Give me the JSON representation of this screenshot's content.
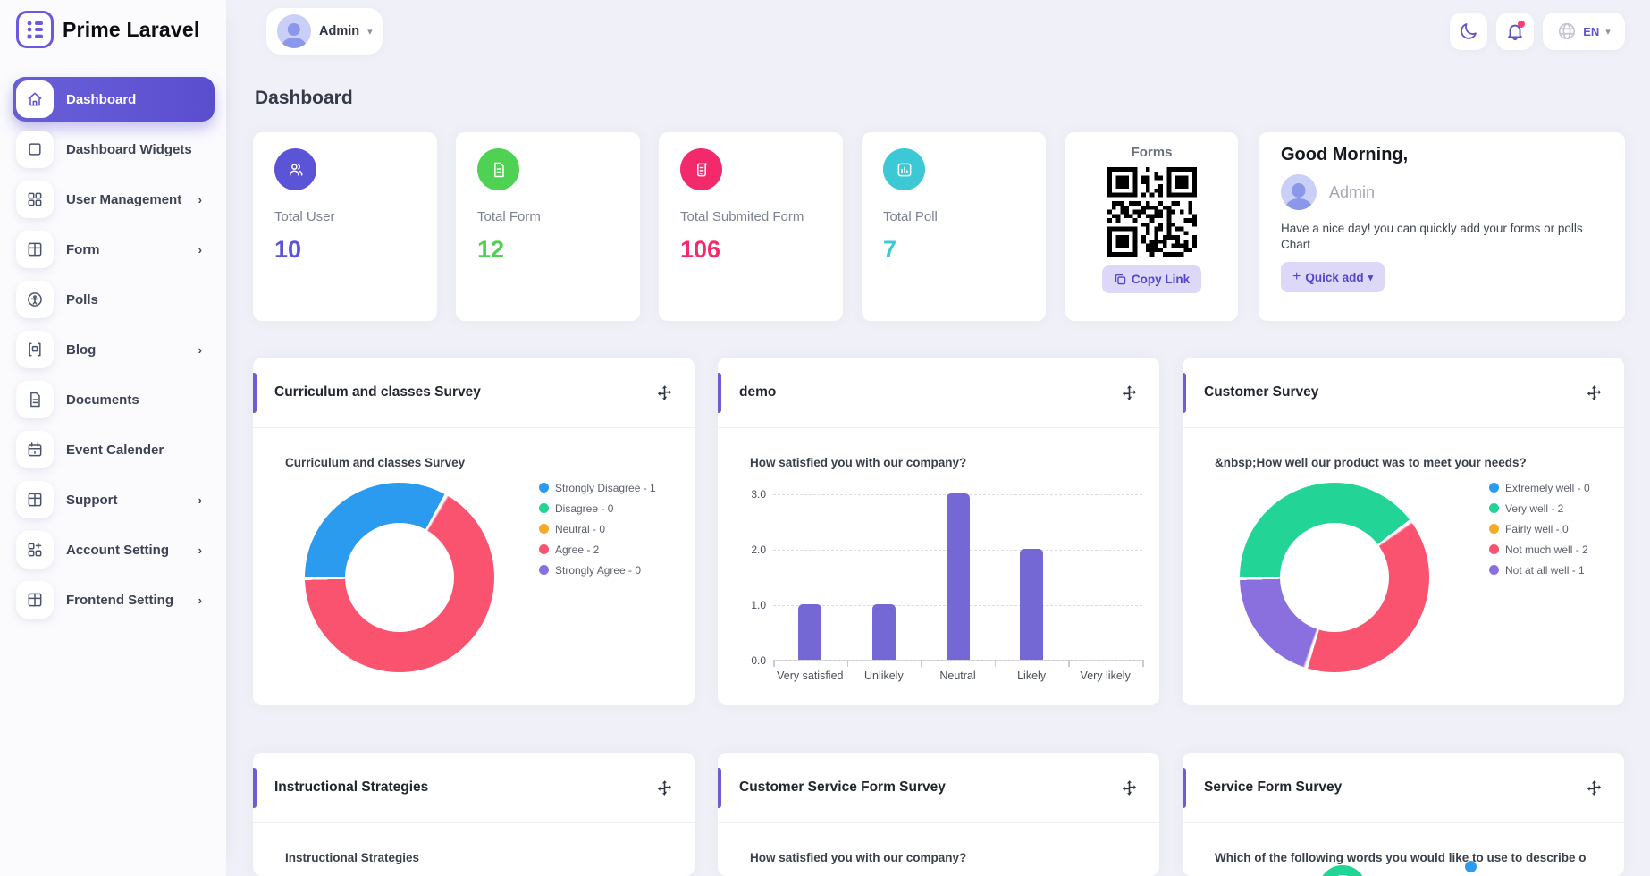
{
  "brand": {
    "name": "Prime Laravel"
  },
  "topbar": {
    "user": "Admin",
    "lang": "EN",
    "icons": [
      "moon-icon",
      "bell-icon",
      "globe-icon"
    ]
  },
  "sidebar": {
    "items": [
      {
        "label": "Dashboard",
        "icon": "home-icon",
        "active": true,
        "chevron": false
      },
      {
        "label": "Dashboard Widgets",
        "icon": "widget-icon",
        "active": false,
        "chevron": false
      },
      {
        "label": "User Management",
        "icon": "grid-icon",
        "active": false,
        "chevron": true
      },
      {
        "label": "Form",
        "icon": "table-icon",
        "active": false,
        "chevron": true
      },
      {
        "label": "Polls",
        "icon": "polls-icon",
        "active": false,
        "chevron": false
      },
      {
        "label": "Blog",
        "icon": "blog-icon",
        "active": false,
        "chevron": true
      },
      {
        "label": "Documents",
        "icon": "document-icon",
        "active": false,
        "chevron": false
      },
      {
        "label": "Event Calender",
        "icon": "calendar-icon",
        "active": false,
        "chevron": false
      },
      {
        "label": "Support",
        "icon": "table-icon",
        "active": false,
        "chevron": true
      },
      {
        "label": "Account Setting",
        "icon": "grid-plus-icon",
        "active": false,
        "chevron": true
      },
      {
        "label": "Frontend Setting",
        "icon": "table-icon",
        "active": false,
        "chevron": true
      }
    ]
  },
  "page": {
    "title": "Dashboard"
  },
  "stats": [
    {
      "label": "Total User",
      "value": "10",
      "color": "#5b54d6",
      "icon": "users-icon"
    },
    {
      "label": "Total Form",
      "value": "12",
      "color": "#4fd153",
      "icon": "form-icon"
    },
    {
      "label": "Total Submited Form",
      "value": "106",
      "color": "#f2296b",
      "icon": "submitted-form-icon"
    },
    {
      "label": "Total Poll",
      "value": "7",
      "color": "#3cc9d5",
      "icon": "poll-icon"
    }
  ],
  "forms_card": {
    "title": "Forms",
    "button": "Copy Link"
  },
  "greeting": {
    "title": "Good Morning,",
    "user": "Admin",
    "message": "Have a nice day! you can quickly add your forms or polls Chart",
    "button": "Quick add"
  },
  "widgets": [
    {
      "title": "Curriculum and classes Survey"
    },
    {
      "title": "demo"
    },
    {
      "title": "Customer Survey"
    },
    {
      "title": "Instructional Strategies",
      "inner_title": "Instructional Strategies"
    },
    {
      "title": "Customer Service Form Survey",
      "inner_title": "How satisfied you with our company?"
    },
    {
      "title": "Service Form Survey",
      "inner_title": "Which of the following words you would like to use to describe o"
    }
  ],
  "chart_data": [
    {
      "type": "pie",
      "widget": 0,
      "title": "Curriculum and classes Survey",
      "legend_position": "right",
      "categories": [
        "Strongly Disagree",
        "Disagree",
        "Neutral",
        "Agree",
        "Strongly Agree"
      ],
      "values": [
        1,
        0,
        0,
        2,
        0
      ],
      "colors": [
        "#2b9bf0",
        "#22d597",
        "#f7a928",
        "#f9536f",
        "#8a70de"
      ],
      "donut": true,
      "start_angle_deg": 270
    },
    {
      "type": "bar",
      "widget": 1,
      "title": "How satisfied you with our company?",
      "categories": [
        "Very satisfied",
        "Unlikely",
        "Neutral",
        "Likely",
        "Very likely"
      ],
      "values": [
        1,
        1,
        3,
        2,
        0
      ],
      "bar_color": "#7468d4",
      "ylim": [
        0,
        3
      ],
      "ytick_step": 1,
      "grid": "dashed"
    },
    {
      "type": "pie",
      "widget": 2,
      "title": "&nbsp;How well our product was to meet your needs?",
      "legend_position": "right",
      "categories": [
        "Extremely well",
        "Very well",
        "Fairly well",
        "Not much well",
        "Not at all well"
      ],
      "values": [
        0,
        2,
        0,
        2,
        1
      ],
      "colors": [
        "#2b9bf0",
        "#22d597",
        "#f7a928",
        "#f9536f",
        "#8a70de"
      ],
      "donut": true,
      "start_angle_deg": 270
    }
  ]
}
